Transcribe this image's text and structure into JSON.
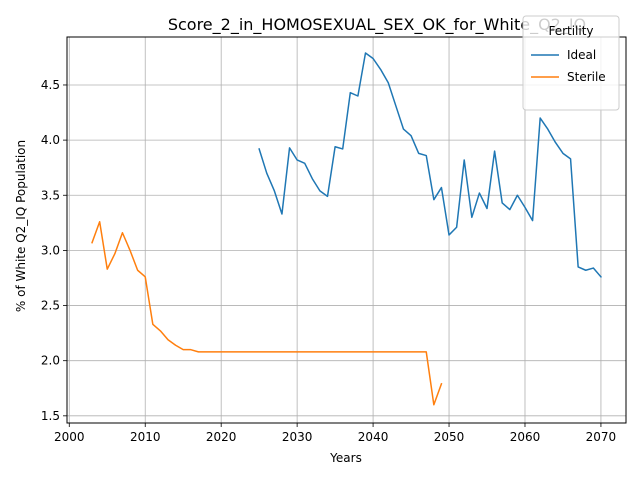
{
  "chart_data": {
    "type": "line",
    "title": "Score_2_in_HOMOSEXUAL_SEX_OK_for_White_Q2_IQ",
    "xlabel": "Years",
    "ylabel": "% of White Q2_IQ Population",
    "xlim": [
      1999.7,
      2073.3
    ],
    "ylim": [
      1.435,
      4.935
    ],
    "xticks": [
      2000,
      2010,
      2020,
      2030,
      2040,
      2050,
      2060,
      2070
    ],
    "yticks": [
      1.5,
      2.0,
      2.5,
      3.0,
      3.5,
      4.0,
      4.5
    ],
    "grid": true,
    "legend": {
      "title": "Fertility",
      "position": "top-right"
    },
    "series": [
      {
        "name": "Ideal",
        "color": "#1f77b4",
        "x": [
          2025,
          2026,
          2027,
          2028,
          2029,
          2030,
          2031,
          2032,
          2033,
          2034,
          2035,
          2036,
          2037,
          2038,
          2039,
          2040,
          2041,
          2042,
          2043,
          2044,
          2045,
          2046,
          2047,
          2048,
          2049,
          2050,
          2051,
          2052,
          2053,
          2054,
          2055,
          2056,
          2057,
          2058,
          2059,
          2060,
          2061,
          2062,
          2063,
          2064,
          2065,
          2066,
          2067,
          2068,
          2069,
          2070
        ],
        "y": [
          3.92,
          3.7,
          3.54,
          3.33,
          3.93,
          3.82,
          3.79,
          3.65,
          3.54,
          3.49,
          3.94,
          3.92,
          4.43,
          4.4,
          4.79,
          4.74,
          4.64,
          4.52,
          4.31,
          4.1,
          4.04,
          3.88,
          3.86,
          3.46,
          3.57,
          3.14,
          3.21,
          3.82,
          3.3,
          3.52,
          3.38,
          3.9,
          3.43,
          3.37,
          3.5,
          3.39,
          3.27,
          4.2,
          4.1,
          3.98,
          3.88,
          3.83,
          2.85,
          2.82,
          2.84,
          2.76
        ]
      },
      {
        "name": "Sterile",
        "color": "#ff7f0e",
        "x": [
          2003,
          2004,
          2005,
          2006,
          2007,
          2008,
          2009,
          2010,
          2011,
          2012,
          2013,
          2014,
          2015,
          2016,
          2017,
          2018,
          2019,
          2020,
          2021,
          2022,
          2023,
          2024,
          2025,
          2026,
          2027,
          2028,
          2029,
          2030,
          2031,
          2032,
          2033,
          2034,
          2035,
          2036,
          2037,
          2038,
          2039,
          2040,
          2041,
          2042,
          2043,
          2044,
          2045,
          2046,
          2047,
          2048,
          2049
        ],
        "y": [
          3.07,
          3.26,
          2.83,
          2.97,
          3.16,
          3.0,
          2.82,
          2.76,
          2.33,
          2.27,
          2.19,
          2.14,
          2.1,
          2.1,
          2.08,
          2.08,
          2.08,
          2.08,
          2.08,
          2.08,
          2.08,
          2.08,
          2.08,
          2.08,
          2.08,
          2.08,
          2.08,
          2.08,
          2.08,
          2.08,
          2.08,
          2.08,
          2.08,
          2.08,
          2.08,
          2.08,
          2.08,
          2.08,
          2.08,
          2.08,
          2.08,
          2.08,
          2.08,
          2.08,
          2.08,
          1.6,
          1.79
        ]
      }
    ]
  }
}
